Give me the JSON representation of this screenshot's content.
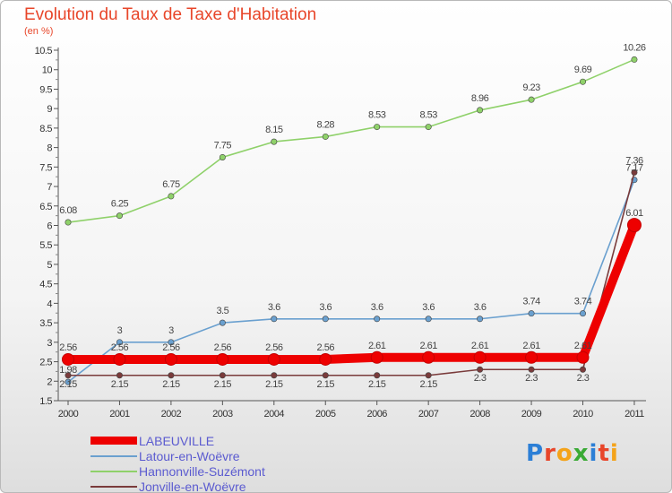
{
  "header": {
    "title": "Evolution du Taux de Taxe d'Habitation",
    "unit": "(en %)"
  },
  "logo": {
    "text": "Proxiti",
    "letters": [
      {
        "ch": "P",
        "color": "#2c7fd6"
      },
      {
        "ch": "r",
        "color": "#e8462a"
      },
      {
        "ch": "o",
        "color": "#f4a31a"
      },
      {
        "ch": "x",
        "color": "#3aaa35"
      },
      {
        "ch": "i",
        "color": "#2c7fd6"
      },
      {
        "ch": "t",
        "color": "#e8462a"
      },
      {
        "ch": "i",
        "color": "#f4a31a"
      }
    ]
  },
  "chart_data": {
    "type": "line",
    "title": "Evolution du Taux de Taxe d'Habitation",
    "subtitle": "(en %)",
    "xlabel": "",
    "ylabel": "",
    "x": [
      "2000",
      "2001",
      "2002",
      "2003",
      "2004",
      "2005",
      "2006",
      "2007",
      "2008",
      "2009",
      "2010",
      "2011"
    ],
    "ylim": [
      1.5,
      10.5
    ],
    "yticks": [
      "1.5",
      "2",
      "2.5",
      "3",
      "3.5",
      "4",
      "4.5",
      "5",
      "5.5",
      "6",
      "6.5",
      "7",
      "7.5",
      "8",
      "8.5",
      "9",
      "9.5",
      "10",
      "10.5"
    ],
    "grid": false,
    "legend_position": "bottom-left",
    "series": [
      {
        "name": "LABEUVILLE",
        "color": "#ee0000",
        "values": [
          2.56,
          2.56,
          2.56,
          2.56,
          2.56,
          2.56,
          2.61,
          2.61,
          2.61,
          2.61,
          2.61,
          6.01
        ],
        "labels": [
          "2.56",
          "2.56",
          "2.56",
          "2.56",
          "2.56",
          "2.56",
          "2.61",
          "2.61",
          "2.61",
          "2.61",
          "2.61",
          "6.01"
        ]
      },
      {
        "name": "Latour-en-Woëvre",
        "color": "#6aa0cf",
        "values": [
          1.98,
          3.0,
          3.0,
          3.5,
          3.6,
          3.6,
          3.6,
          3.6,
          3.6,
          3.74,
          3.74,
          7.17
        ],
        "labels": [
          "1.98",
          "3",
          "3",
          "3.5",
          "3.6",
          "3.6",
          "3.6",
          "3.6",
          "3.6",
          "3.74",
          "3.74",
          "7.17"
        ]
      },
      {
        "name": "Hannonville-Suzémont",
        "color": "#8fd16a",
        "values": [
          6.08,
          6.25,
          6.75,
          7.75,
          8.15,
          8.28,
          8.53,
          8.53,
          8.96,
          9.23,
          9.69,
          10.26
        ],
        "labels": [
          "6.08",
          "6.25",
          "6.75",
          "7.75",
          "8.15",
          "8.28",
          "8.53",
          "8.53",
          "8.96",
          "9.23",
          "9.69",
          "10.26"
        ]
      },
      {
        "name": "Jonville-en-Woëvre",
        "color": "#7a3b3b",
        "values": [
          2.15,
          2.15,
          2.15,
          2.15,
          2.15,
          2.15,
          2.15,
          2.15,
          2.3,
          2.3,
          2.3,
          7.36
        ],
        "labels": [
          "2.15",
          "2.15",
          "2.15",
          "2.15",
          "2.15",
          "2.15",
          "2.15",
          "2.15",
          "2.3",
          "2.3",
          "2.3",
          "7.36"
        ]
      }
    ]
  }
}
